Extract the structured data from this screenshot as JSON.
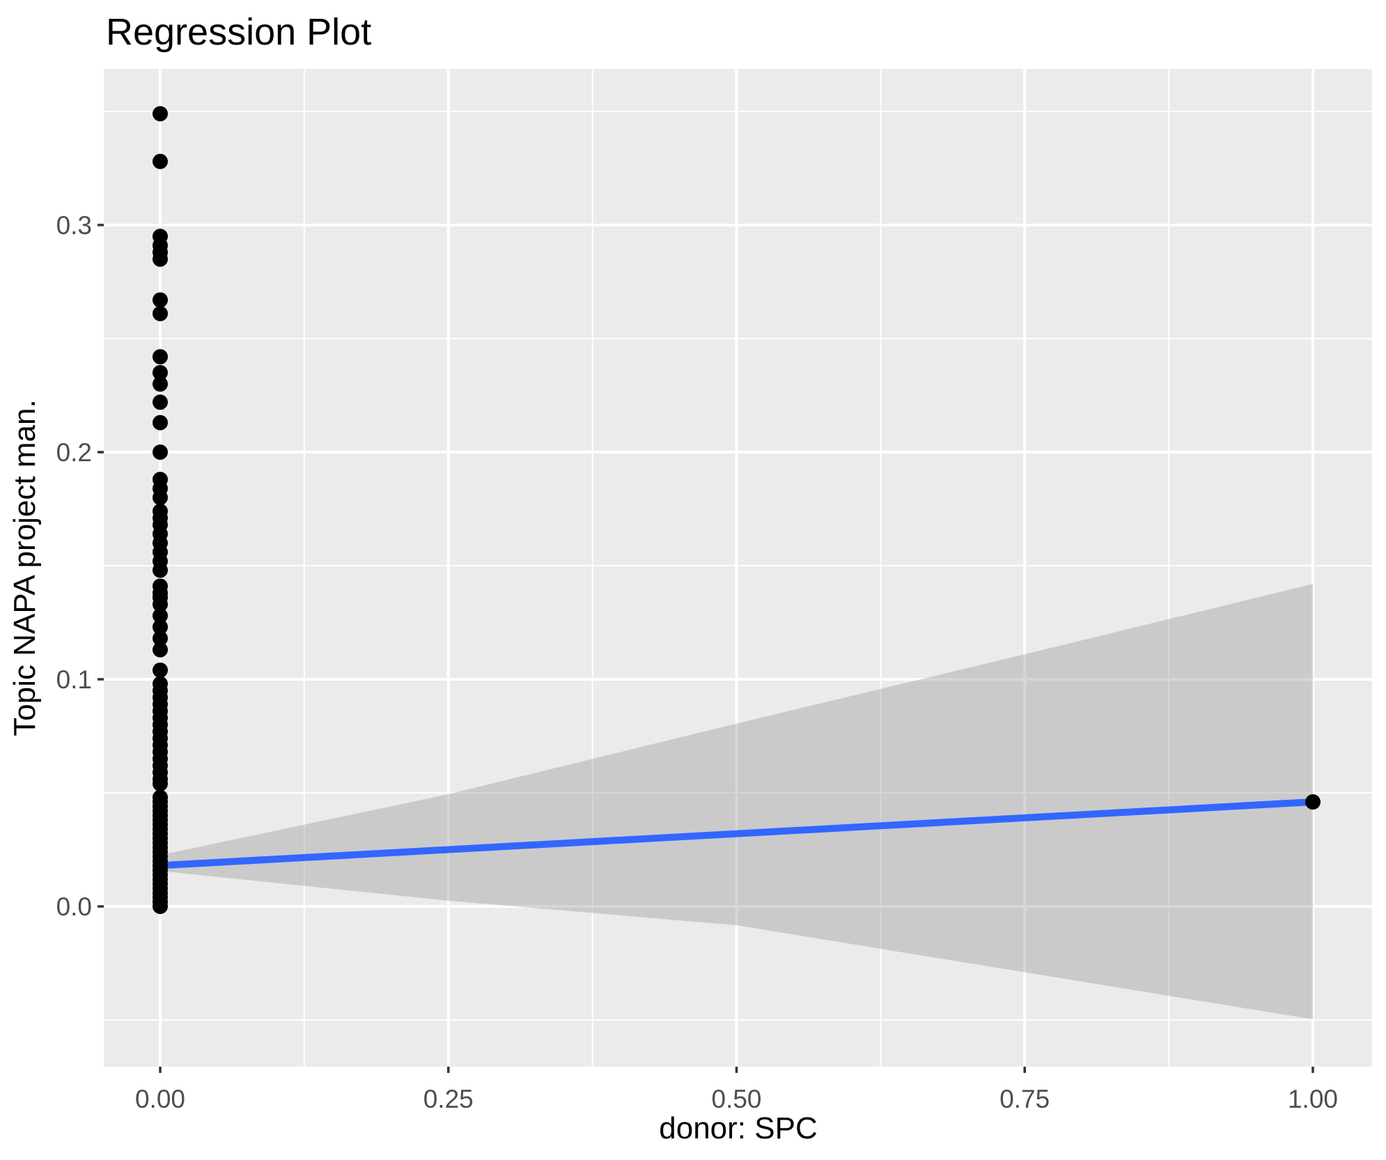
{
  "page": {
    "background": "#FFFFFF"
  },
  "chart_data": {
    "type": "scatter",
    "title": "Regression Plot",
    "xlabel": "donor: SPC",
    "ylabel": "Topic NAPA project man.",
    "x_axis": {
      "ticks": [
        0,
        0.25,
        0.5,
        0.75,
        1
      ],
      "tick_labels": [
        "0.00",
        "0.25",
        "0.50",
        "0.75",
        "1.00"
      ],
      "minor_ticks": [
        0.125,
        0.375,
        0.625,
        0.875
      ],
      "range": [
        -0.049,
        1.051
      ],
      "grid": true
    },
    "y_axis": {
      "ticks": [
        0,
        0.1,
        0.2,
        0.3
      ],
      "tick_labels": [
        "0.0",
        "0.1",
        "0.2",
        "0.3"
      ],
      "minor_ticks": [
        -0.05,
        0.05,
        0.15,
        0.25,
        0.35
      ],
      "range": [
        -0.0703,
        0.3687
      ],
      "grid": true
    },
    "points": {
      "x0_values": [
        0.349,
        0.328,
        0.295,
        0.291,
        0.288,
        0.285,
        0.267,
        0.261,
        0.242,
        0.235,
        0.23,
        0.222,
        0.213,
        0.2,
        0.188,
        0.184,
        0.18,
        0.174,
        0.171,
        0.168,
        0.164,
        0.16,
        0.156,
        0.152,
        0.148,
        0.141,
        0.138,
        0.136,
        0.133,
        0.128,
        0.123,
        0.118,
        0.113,
        0.104,
        0.098,
        0.095,
        0.092,
        0.089,
        0.086,
        0.083,
        0.08,
        0.077,
        0.074,
        0.071,
        0.068,
        0.065,
        0.062,
        0.059,
        0.056,
        0.054,
        0.048,
        0.046,
        0.044,
        0.042,
        0.04,
        0.038,
        0.036,
        0.034,
        0.032,
        0.03,
        0.028,
        0.026,
        0.024,
        0.022,
        0.02,
        0.018,
        0.016,
        0.014,
        0.012,
        0.01,
        0.008,
        0.006,
        0.004,
        0.002,
        0.0
      ],
      "x1_values": [
        0.046
      ]
    },
    "smooth": {
      "line_start": [
        0,
        0.018
      ],
      "line_end": [
        1,
        0.046
      ],
      "ci_upper": [
        [
          0,
          0.0226
        ],
        [
          0.25,
          0.0494
        ],
        [
          0.5,
          0.0805
        ],
        [
          0.75,
          0.111
        ],
        [
          1,
          0.142
        ]
      ],
      "ci_lower": [
        [
          0,
          0.0156
        ],
        [
          0.25,
          0.0025
        ],
        [
          0.5,
          -0.0083
        ],
        [
          0.75,
          -0.029
        ],
        [
          1,
          -0.0497
        ]
      ]
    },
    "style": {
      "panel_bg": "#EBEBEB",
      "grid_color": "#FFFFFF",
      "point_color": "#000000",
      "point_radius": 11,
      "line_color": "#3366FF",
      "line_width": 10,
      "ribbon_fill": "rgba(153,153,153,0.40)",
      "tick_mark_color": "#333333",
      "tick_label_color": "#4D4D4D",
      "text_color": "#000000"
    },
    "legend": null
  }
}
